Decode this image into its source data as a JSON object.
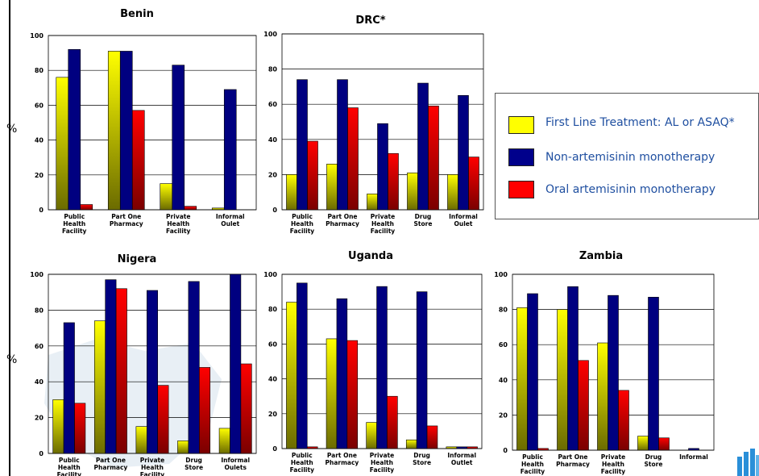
{
  "y_axis_label": "%",
  "legend": [
    {
      "label": " First Line Treatment: AL or ASAQ*",
      "color": "#ffff00",
      "icon": "yellow-gradient-swatch"
    },
    {
      "label": "Non-artemisinin monotherapy",
      "color": "#00008b",
      "icon": "navy-swatch"
    },
    {
      "label": "Oral artemisinin monotherapy",
      "color": "#ff0000",
      "icon": "red-swatch"
    }
  ],
  "colors": {
    "first_line": "#ffff00",
    "non_art": "#000080",
    "oral_art": "#ff0000",
    "legend_text": "#1f4fa0"
  },
  "chart_data": [
    {
      "type": "bar",
      "title": "Benin",
      "ylim": [
        0,
        100
      ],
      "yticks": [
        0,
        20,
        40,
        60,
        80,
        100
      ],
      "categories": [
        [
          "Public",
          "Health",
          "Facility"
        ],
        [
          "Part One",
          "Pharmacy"
        ],
        [
          "Private",
          "Health",
          "Facility"
        ],
        [
          "Informal",
          "Oulet"
        ]
      ],
      "series": [
        {
          "name": " First Line Treatment: AL or ASAQ*",
          "values": [
            76,
            91,
            15,
            1
          ]
        },
        {
          "name": "Non-artemisinin monotherapy",
          "values": [
            92,
            91,
            83,
            69
          ]
        },
        {
          "name": "Oral artemisinin monotherapy",
          "values": [
            3,
            57,
            2,
            0
          ]
        }
      ]
    },
    {
      "type": "bar",
      "title": "DRC*",
      "ylim": [
        0,
        100
      ],
      "yticks": [
        0,
        20,
        40,
        60,
        80,
        100
      ],
      "categories": [
        [
          "Public",
          "Health",
          "Facility"
        ],
        [
          "Part One",
          "Pharmacy"
        ],
        [
          "Private",
          "Health",
          "Facility"
        ],
        [
          "Drug",
          "Store"
        ],
        [
          "Informal",
          "Oulet"
        ]
      ],
      "series": [
        {
          "name": " First Line Treatment: AL or ASAQ*",
          "values": [
            20,
            26,
            9,
            21,
            20
          ]
        },
        {
          "name": "Non-artemisinin monotherapy",
          "values": [
            74,
            74,
            49,
            72,
            65
          ]
        },
        {
          "name": "Oral artemisinin monotherapy",
          "values": [
            39,
            58,
            32,
            59,
            30
          ]
        }
      ]
    },
    {
      "type": "bar",
      "title": "Nigera",
      "ylim": [
        0,
        100
      ],
      "yticks": [
        0,
        20,
        40,
        60,
        80,
        100
      ],
      "categories": [
        [
          "Public",
          "Health",
          "Facility"
        ],
        [
          "Part One",
          "Pharmacy"
        ],
        [
          "Private",
          "Health",
          "Facility"
        ],
        [
          "Drug",
          "Store"
        ],
        [
          "Informal",
          "Oulets"
        ]
      ],
      "series": [
        {
          "name": " First Line Treatment: AL or ASAQ*",
          "values": [
            30,
            74,
            15,
            7,
            14
          ]
        },
        {
          "name": "Non-artemisinin monotherapy",
          "values": [
            73,
            97,
            91,
            96,
            100
          ]
        },
        {
          "name": "Oral artemisinin monotherapy",
          "values": [
            28,
            92,
            38,
            48,
            50
          ]
        }
      ]
    },
    {
      "type": "bar",
      "title": "Uganda",
      "ylim": [
        0,
        100
      ],
      "yticks": [
        0,
        20,
        40,
        60,
        80,
        100
      ],
      "categories": [
        [
          "Public",
          "Health",
          "Facility"
        ],
        [
          "Part One",
          "Pharmacy"
        ],
        [
          "Private",
          "Health",
          "Facility"
        ],
        [
          "Drug",
          "Store"
        ],
        [
          "Informal",
          "Outlet"
        ]
      ],
      "series": [
        {
          "name": " First Line Treatment: AL or ASAQ*",
          "values": [
            84,
            63,
            15,
            5,
            1
          ]
        },
        {
          "name": "Non-artemisinin monotherapy",
          "values": [
            95,
            86,
            93,
            90,
            1
          ]
        },
        {
          "name": "Oral artemisinin monotherapy",
          "values": [
            1,
            62,
            30,
            13,
            1
          ]
        }
      ]
    },
    {
      "type": "bar",
      "title": "Zambia",
      "ylim": [
        0,
        100
      ],
      "yticks": [
        0,
        20,
        40,
        60,
        80,
        100
      ],
      "categories": [
        [
          "Public",
          "Health",
          "Facility"
        ],
        [
          "Part One",
          "Pharmacy"
        ],
        [
          "Private",
          "Health",
          "Facility"
        ],
        [
          "Drug",
          "Store"
        ],
        [
          "Informal"
        ]
      ],
      "series": [
        {
          "name": " First Line Treatment: AL or ASAQ*",
          "values": [
            81,
            80,
            61,
            8,
            0
          ]
        },
        {
          "name": "Non-artemisinin monotherapy",
          "values": [
            89,
            93,
            88,
            87,
            1
          ]
        },
        {
          "name": "Oral artemisinin monotherapy",
          "values": [
            1,
            51,
            34,
            7,
            0
          ]
        }
      ]
    }
  ]
}
